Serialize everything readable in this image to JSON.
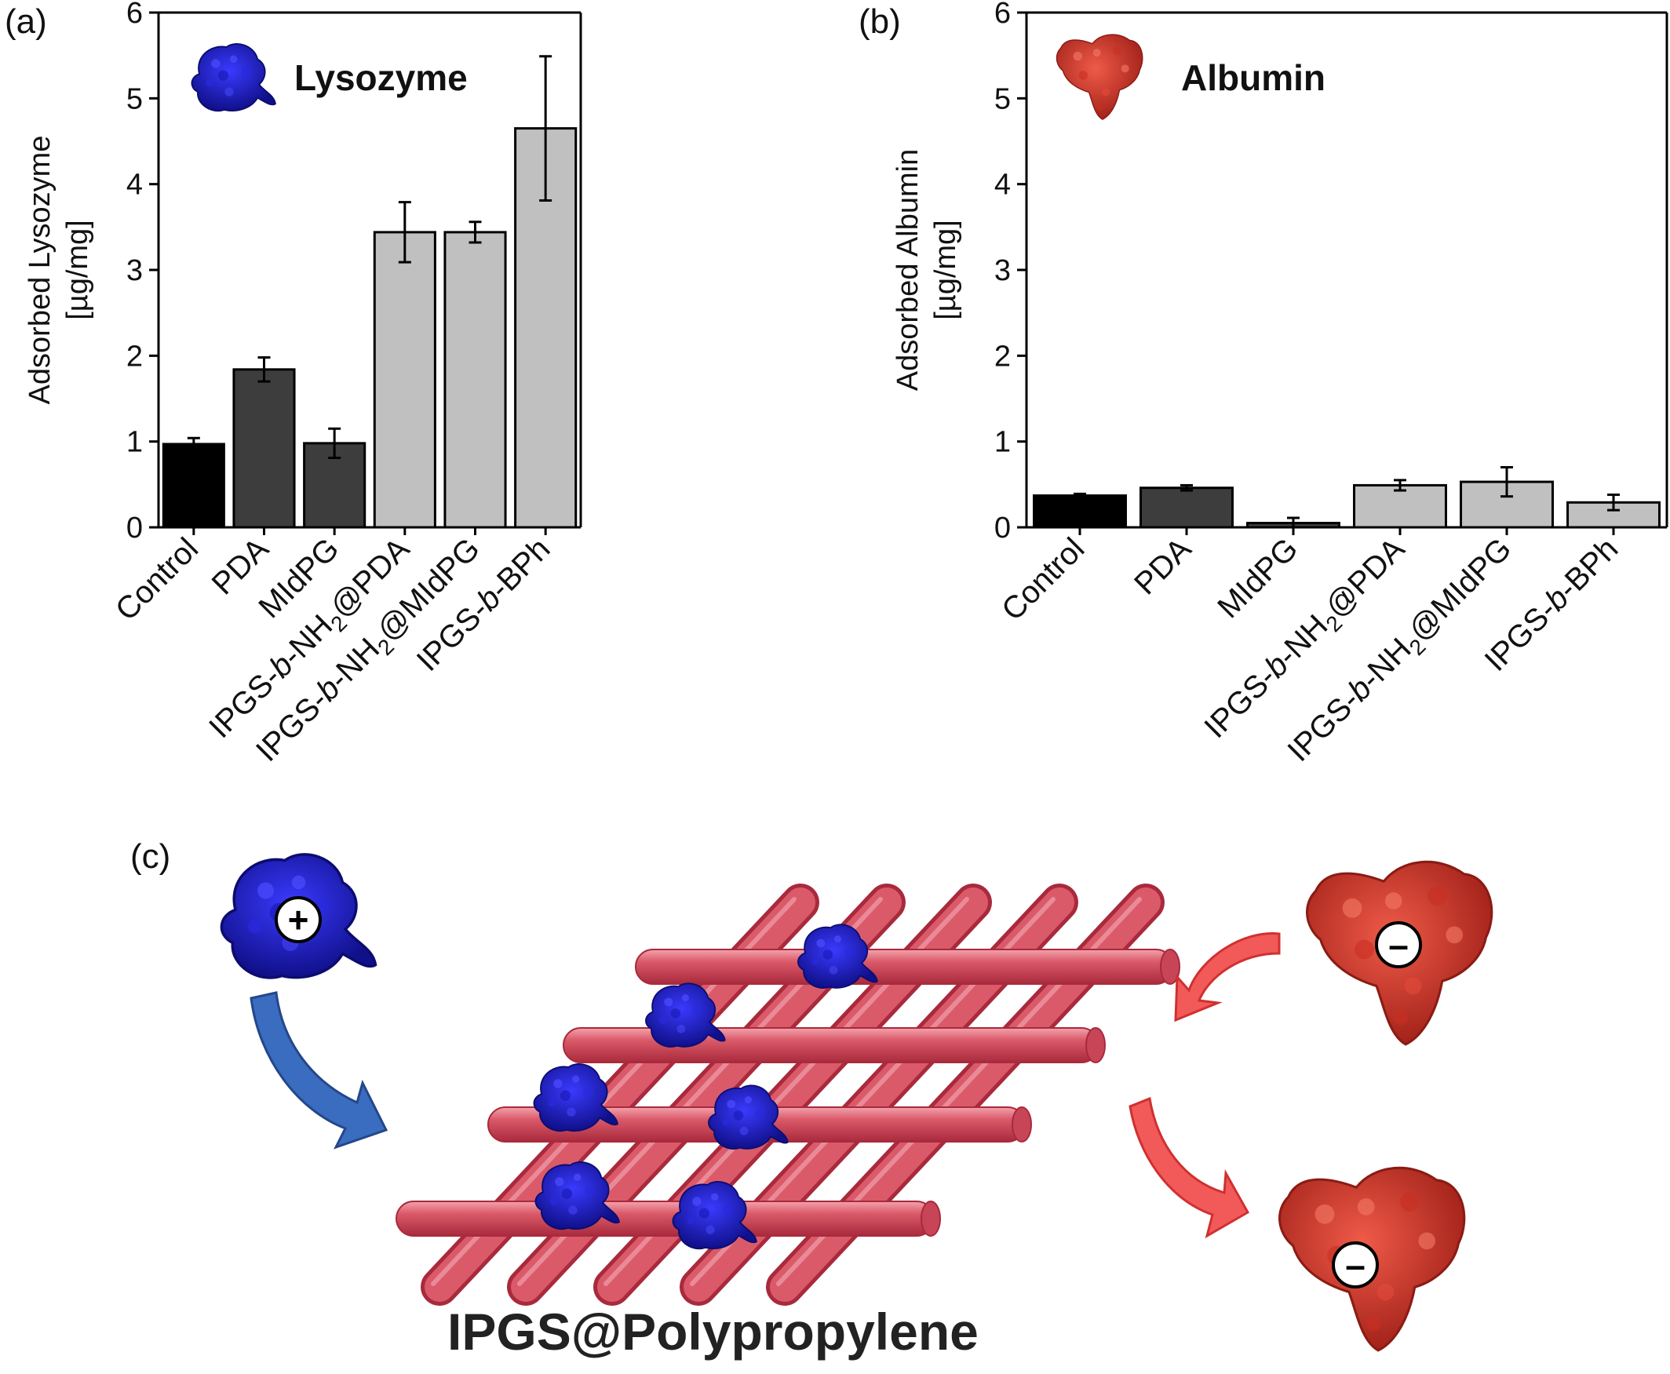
{
  "chart_data": [
    {
      "panel_label": "(a)",
      "type": "bar",
      "legend_label": "Lysozyme",
      "legend_icon": "lysozyme-protein-icon",
      "ylabel_line1": "Adsorbed Lysozyme",
      "ylabel_line2": "[µg/mg]",
      "ylim": [
        0,
        6
      ],
      "yticks": [
        "0",
        "1",
        "2",
        "3",
        "4",
        "5",
        "6"
      ],
      "categories": [
        {
          "pre": "Control",
          "it": "",
          "mid": "",
          "sub": "",
          "post": ""
        },
        {
          "pre": "PDA",
          "it": "",
          "mid": "",
          "sub": "",
          "post": ""
        },
        {
          "pre": "MIdPG",
          "it": "",
          "mid": "",
          "sub": "",
          "post": ""
        },
        {
          "pre": "IPGS-",
          "it": "b",
          "mid": "-NH",
          "sub": "2",
          "post": "@PDA"
        },
        {
          "pre": "IPGS-",
          "it": "b",
          "mid": "-NH",
          "sub": "2",
          "post": "@MIdPG"
        },
        {
          "pre": "IPGS-",
          "it": "b",
          "mid": "-BPh",
          "sub": "",
          "post": ""
        }
      ],
      "values": [
        0.97,
        1.84,
        0.98,
        3.44,
        3.44,
        4.65
      ],
      "errors": [
        0.07,
        0.14,
        0.17,
        0.35,
        0.12,
        0.84
      ],
      "bar_colors": [
        "#000000",
        "#3d3d3d",
        "#3d3d3d",
        "#c0c0c0",
        "#c0c0c0",
        "#c0c0c0"
      ],
      "grid": false
    },
    {
      "panel_label": "(b)",
      "type": "bar",
      "legend_label": "Albumin",
      "legend_icon": "albumin-protein-icon",
      "ylabel_line1": "Adsorbed Albumin",
      "ylabel_line2": "[µg/mg]",
      "ylim": [
        0,
        6
      ],
      "yticks": [
        "0",
        "1",
        "2",
        "3",
        "4",
        "5",
        "6"
      ],
      "categories": [
        {
          "pre": "Control",
          "it": "",
          "mid": "",
          "sub": "",
          "post": ""
        },
        {
          "pre": "PDA",
          "it": "",
          "mid": "",
          "sub": "",
          "post": ""
        },
        {
          "pre": "MIdPG",
          "it": "",
          "mid": "",
          "sub": "",
          "post": ""
        },
        {
          "pre": "IPGS-",
          "it": "b",
          "mid": "-NH",
          "sub": "2",
          "post": "@PDA"
        },
        {
          "pre": "IPGS-",
          "it": "b",
          "mid": "-NH",
          "sub": "2",
          "post": "@MIdPG"
        },
        {
          "pre": "IPGS-",
          "it": "b",
          "mid": "-BPh",
          "sub": "",
          "post": ""
        }
      ],
      "values": [
        0.37,
        0.46,
        0.05,
        0.49,
        0.53,
        0.29
      ],
      "errors": [
        0.02,
        0.03,
        0.06,
        0.06,
        0.17,
        0.09
      ],
      "bar_colors": [
        "#000000",
        "#3d3d3d",
        "#3d3d3d",
        "#c0c0c0",
        "#c0c0c0",
        "#c0c0c0"
      ],
      "grid": false
    }
  ],
  "diagram": {
    "panel_label": "(c)",
    "title": "IPGS@Polypropylene",
    "positive_charge": "+",
    "negative_charge": "–",
    "fiber_color": "#d64a5a",
    "lysozyme_color": "#1f1fcc",
    "albumin_color": "#d8382a",
    "blue_arrow_color": "#3a6cc0",
    "red_arrow_color": "#f25a5a"
  }
}
